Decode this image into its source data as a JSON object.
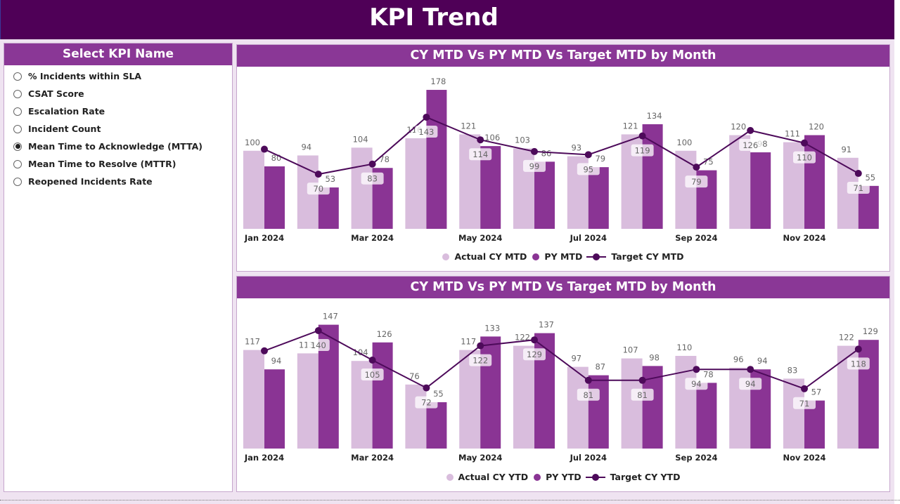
{
  "header": {
    "title": "KPI Trend"
  },
  "slicer": {
    "title": "Select KPI Name",
    "items": [
      {
        "label": "% Incidents within SLA",
        "selected": false
      },
      {
        "label": "CSAT Score",
        "selected": false
      },
      {
        "label": "Escalation Rate",
        "selected": false
      },
      {
        "label": "Incident Count",
        "selected": false
      },
      {
        "label": "Mean Time to Acknowledge (MTTA)",
        "selected": true
      },
      {
        "label": "Mean Time to Resolve (MTTR)",
        "selected": false
      },
      {
        "label": "Reopened Incidents Rate",
        "selected": false
      }
    ]
  },
  "colors": {
    "header": "#4f0057",
    "panel_header": "#8a3796",
    "actual": "#d9bddd",
    "py": "#8a3494",
    "target": "#4d0a5a"
  },
  "chart_data": [
    {
      "type": "bar",
      "title": "CY MTD Vs PY MTD Vs Target MTD by Month",
      "x_ticks": [
        "Jan 2024",
        "Mar 2024",
        "May 2024",
        "Jul 2024",
        "Sep 2024",
        "Nov 2024"
      ],
      "ylim": [
        0,
        205
      ],
      "legend_position": "bottom",
      "series": [
        {
          "name": "Actual CY MTD",
          "kind": "bar",
          "values": [
            100,
            94,
            104,
            116,
            121,
            103,
            93,
            121,
            100,
            120,
            111,
            91
          ]
        },
        {
          "name": "PY MTD",
          "kind": "bar",
          "values": [
            80,
            53,
            78,
            178,
            106,
            86,
            79,
            134,
            75,
            98,
            120,
            55
          ]
        },
        {
          "name": "Target CY MTD",
          "kind": "line",
          "values": [
            102,
            70,
            83,
            143,
            114,
            99,
            95,
            119,
            79,
            126,
            110,
            71
          ],
          "labels_shown": [
            false,
            true,
            true,
            true,
            true,
            true,
            true,
            true,
            true,
            true,
            true,
            true
          ]
        }
      ]
    },
    {
      "type": "bar",
      "title": "CY MTD Vs PY MTD Vs Target MTD by Month",
      "x_ticks": [
        "Jan 2024",
        "Mar 2024",
        "May 2024",
        "Jul 2024",
        "Sep 2024",
        "Nov 2024"
      ],
      "ylim": [
        0,
        175
      ],
      "legend_position": "bottom",
      "series": [
        {
          "name": "Actual CY YTD",
          "kind": "bar",
          "values": [
            117,
            113,
            104,
            76,
            117,
            122,
            97,
            107,
            110,
            96,
            83,
            122
          ]
        },
        {
          "name": "PY YTD",
          "kind": "bar",
          "values": [
            94,
            147,
            126,
            55,
            133,
            137,
            87,
            98,
            78,
            94,
            57,
            129
          ]
        },
        {
          "name": "Target CY YTD",
          "kind": "line",
          "values": [
            116,
            140,
            105,
            72,
            122,
            129,
            81,
            81,
            94,
            94,
            71,
            118
          ],
          "labels_shown": [
            false,
            true,
            true,
            true,
            true,
            true,
            true,
            true,
            true,
            true,
            true,
            true
          ]
        }
      ]
    }
  ]
}
